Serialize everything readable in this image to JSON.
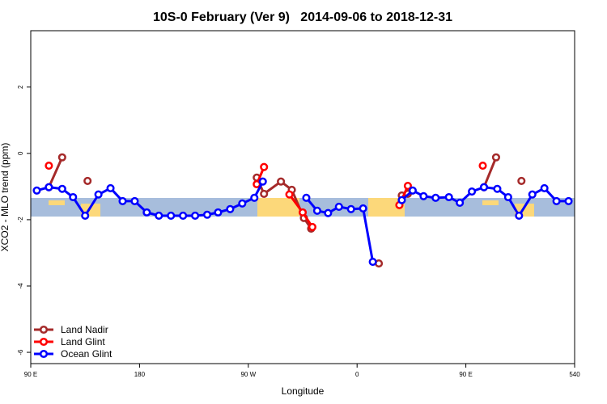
{
  "chart_data": {
    "type": "line",
    "title": "10S-0 February (Ver 9)   2014-09-06 to 2018-12-31",
    "xlabel": "Longitude",
    "ylabel": "XCO2 - MLO trend (ppm)",
    "xlim": [
      90,
      540
    ],
    "ylim": [
      -6.34,
      3.7
    ],
    "xticks": [
      {
        "value": 90,
        "label": "90 E"
      },
      180,
      {
        "value": 270,
        "label": "90 W"
      },
      {
        "value": 360,
        "label": "0"
      },
      {
        "value": 450,
        "label": "90 E"
      },
      540
    ],
    "yticks": [
      -6,
      -4,
      -2,
      0,
      2
    ],
    "legend": "bottom-left",
    "series": [
      {
        "name": "Land Nadir",
        "color": "#a52a2a",
        "x": [
          105,
          116,
          null,
          137,
          null,
          277,
          283,
          297,
          306,
          316,
          322,
          null,
          378,
          null,
          397,
          402,
          null,
          465,
          475,
          null,
          496
        ],
        "values": [
          -1.02,
          -0.12,
          null,
          -0.83,
          null,
          -0.73,
          -1.22,
          -0.85,
          -1.1,
          -1.95,
          -2.27,
          null,
          -3.32,
          null,
          -1.27,
          -1.22,
          null,
          -1.02,
          -0.12,
          null,
          -0.83
        ]
      },
      {
        "name": "Land Glint",
        "color": "#ff0000",
        "x": [
          105,
          null,
          277,
          283,
          null,
          304,
          315,
          323,
          null,
          395,
          402,
          null,
          464
        ],
        "values": [
          -0.37,
          null,
          -0.93,
          -0.41,
          null,
          -1.24,
          -1.78,
          -2.22,
          null,
          -1.56,
          -0.98,
          null,
          -0.37
        ]
      },
      {
        "name": "Ocean Glint",
        "color": "#0000ff",
        "x": [
          95,
          105,
          116,
          125,
          135,
          146,
          156,
          166,
          176,
          186,
          196,
          206,
          216,
          226,
          236,
          245,
          255,
          265,
          275,
          282,
          null,
          318,
          327,
          336,
          345,
          355,
          365,
          373,
          null,
          397,
          406,
          415,
          425,
          436,
          445,
          455,
          465,
          476,
          485,
          494,
          505,
          515,
          525,
          535
        ],
        "values": [
          -1.12,
          -1.02,
          -1.07,
          -1.32,
          -1.88,
          -1.24,
          -1.05,
          -1.44,
          -1.44,
          -1.78,
          -1.88,
          -1.88,
          -1.88,
          -1.88,
          -1.85,
          -1.78,
          -1.68,
          -1.51,
          -1.34,
          -0.85,
          null,
          -1.34,
          -1.73,
          -1.8,
          -1.61,
          -1.68,
          -1.66,
          -3.27,
          null,
          -1.41,
          -1.12,
          -1.29,
          -1.34,
          -1.32,
          -1.49,
          -1.15,
          -1.02,
          -1.07,
          -1.32,
          -1.88,
          -1.24,
          -1.05,
          -1.44,
          -1.44
        ]
      }
    ]
  }
}
